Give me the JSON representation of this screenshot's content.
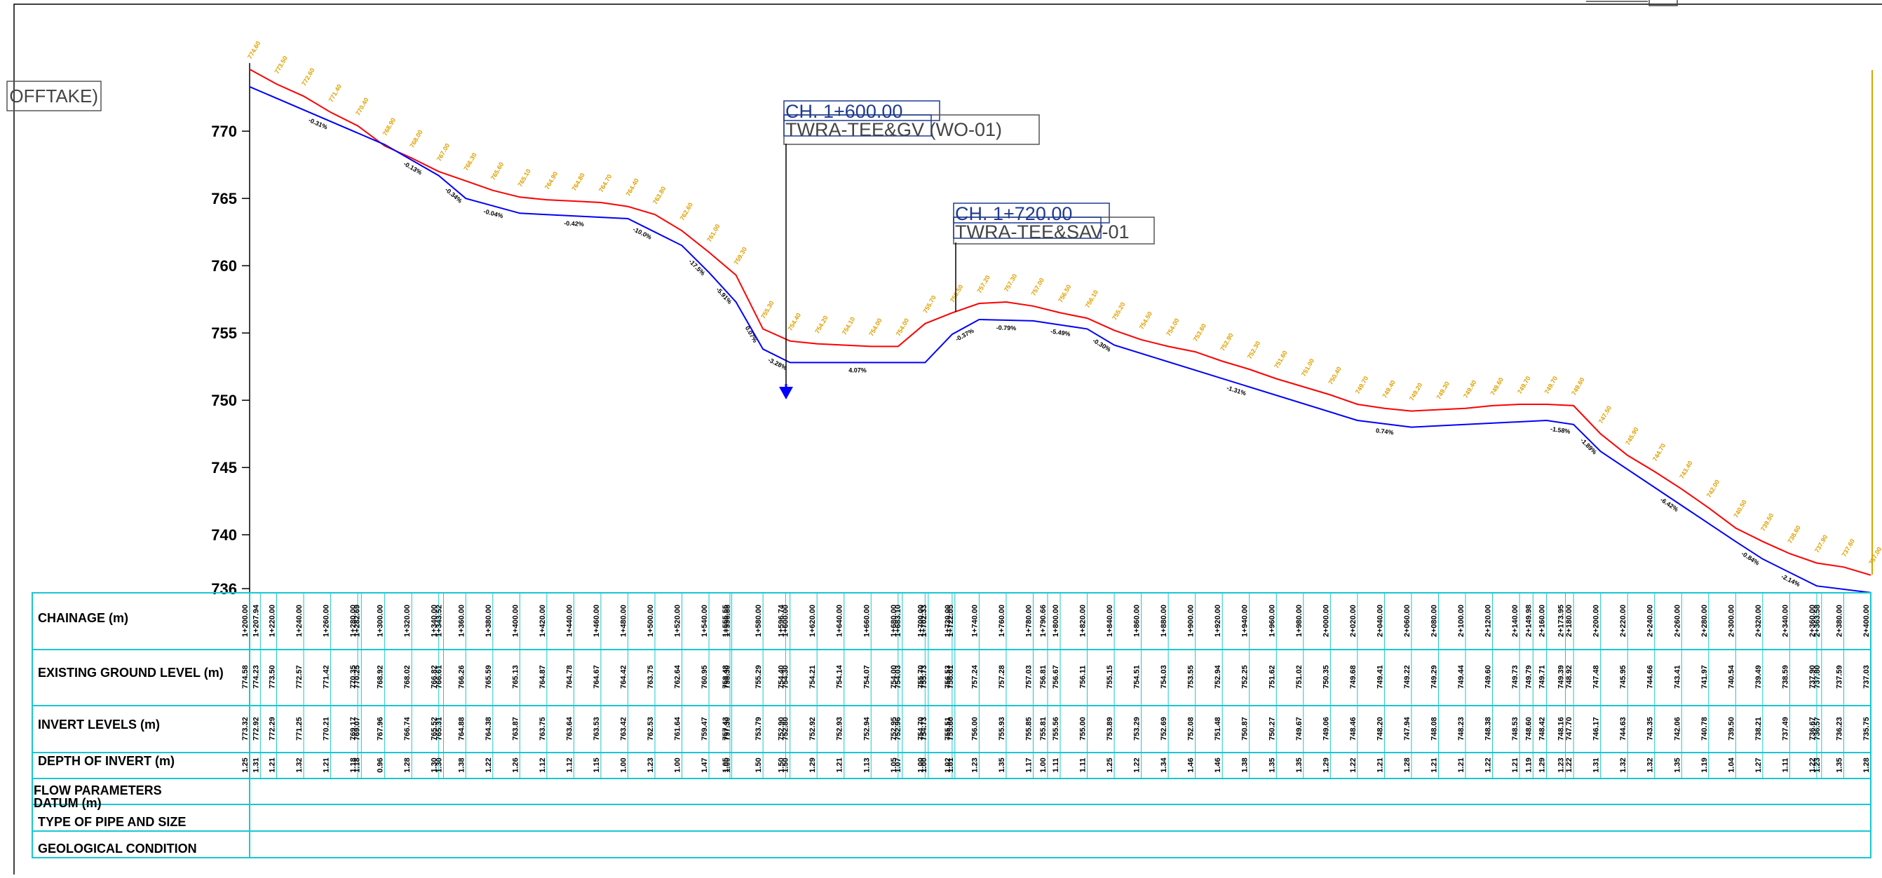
{
  "drawing": {
    "offtake_label": "OFFTAKE)",
    "annotations": [
      {
        "chainage": "CH. 1+600.00",
        "fitting": "TWRA-TEE&GV (WO-01)"
      },
      {
        "chainage": "CH. 1+720.00",
        "fitting": "TWRA-TEE&SAV-01"
      }
    ]
  },
  "chart_data": {
    "type": "line",
    "title": "",
    "ylabel": "",
    "ylim": [
      736,
      775
    ],
    "y_ticks": [
      "770",
      "765",
      "760",
      "755",
      "750",
      "745",
      "740",
      "736"
    ],
    "x_range": [
      1200,
      2400
    ],
    "series": [
      {
        "name": "",
        "color": "#ff0000",
        "points": [
          [
            1200,
            774.6
          ],
          [
            1220,
            773.5
          ],
          [
            1240,
            772.6
          ],
          [
            1260,
            771.4
          ],
          [
            1280,
            770.4
          ],
          [
            1300,
            768.9
          ],
          [
            1320,
            768.0
          ],
          [
            1340,
            767.0
          ],
          [
            1360,
            766.3
          ],
          [
            1380,
            765.6
          ],
          [
            1400,
            765.1
          ],
          [
            1420,
            764.9
          ],
          [
            1440,
            764.8
          ],
          [
            1460,
            764.7
          ],
          [
            1480,
            764.4
          ],
          [
            1500,
            763.8
          ],
          [
            1520,
            762.6
          ],
          [
            1540,
            761.0
          ],
          [
            1560,
            759.3
          ],
          [
            1580,
            755.3
          ],
          [
            1600,
            754.4
          ],
          [
            1620,
            754.2
          ],
          [
            1640,
            754.1
          ],
          [
            1660,
            754.0
          ],
          [
            1680,
            754.0
          ],
          [
            1700,
            755.7
          ],
          [
            1720,
            756.5
          ],
          [
            1740,
            757.2
          ],
          [
            1760,
            757.3
          ],
          [
            1780,
            757.0
          ],
          [
            1800,
            756.5
          ],
          [
            1820,
            756.1
          ],
          [
            1840,
            755.2
          ],
          [
            1860,
            754.5
          ],
          [
            1880,
            754.0
          ],
          [
            1900,
            753.6
          ],
          [
            1920,
            752.9
          ],
          [
            1940,
            752.3
          ],
          [
            1960,
            751.6
          ],
          [
            1980,
            751.0
          ],
          [
            2000,
            750.4
          ],
          [
            2020,
            749.7
          ],
          [
            2040,
            749.4
          ],
          [
            2060,
            749.2
          ],
          [
            2080,
            749.3
          ],
          [
            2100,
            749.4
          ],
          [
            2120,
            749.6
          ],
          [
            2140,
            749.7
          ],
          [
            2160,
            749.7
          ],
          [
            2180,
            749.6
          ],
          [
            2200,
            747.5
          ],
          [
            2220,
            745.9
          ],
          [
            2240,
            744.7
          ],
          [
            2260,
            743.4
          ],
          [
            2280,
            742.0
          ],
          [
            2300,
            740.5
          ],
          [
            2320,
            739.5
          ],
          [
            2340,
            738.6
          ],
          [
            2360,
            737.9
          ],
          [
            2380,
            737.6
          ],
          [
            2400,
            737.0
          ]
        ]
      },
      {
        "name": "",
        "color": "#0000ff",
        "points": [
          [
            1200,
            773.3
          ],
          [
            1300,
            769.0
          ],
          [
            1340,
            766.7
          ],
          [
            1360,
            765.0
          ],
          [
            1400,
            763.9
          ],
          [
            1480,
            763.5
          ],
          [
            1500,
            762.5
          ],
          [
            1520,
            761.5
          ],
          [
            1540,
            759.5
          ],
          [
            1560,
            757.3
          ],
          [
            1580,
            753.8
          ],
          [
            1600,
            752.8
          ],
          [
            1700,
            752.8
          ],
          [
            1720,
            754.9
          ],
          [
            1740,
            756.0
          ],
          [
            1780,
            755.9
          ],
          [
            1820,
            755.3
          ],
          [
            1840,
            754.1
          ],
          [
            2020,
            748.5
          ],
          [
            2060,
            748.0
          ],
          [
            2160,
            748.5
          ],
          [
            2180,
            748.2
          ],
          [
            2200,
            746.2
          ],
          [
            2300,
            739.5
          ],
          [
            2320,
            738.2
          ],
          [
            2360,
            736.2
          ],
          [
            2400,
            735.7
          ]
        ]
      }
    ],
    "gradients": [
      "-0.31%",
      "-0.13%",
      "-0.34%",
      "-0.04%",
      "-0.42%",
      "-10.0%",
      "-17.5%",
      "-5.91%",
      "0.07%",
      "-3.28%",
      "4.07%",
      "-0.37%",
      "-0.79%",
      "-5.49%",
      "-0.30%",
      "-1.31%",
      "0.74%",
      "-1.58%",
      "-1.89%",
      "-6.42%",
      "-0.84%",
      "-2.14%"
    ],
    "profile_table": {
      "row_labels": [
        "CHAINAGE (m)",
        "EXISTING GROUND LEVEL (m)",
        "INVERT LEVELS (m)",
        "DEPTH OF INVERT (m)",
        "FLOW PARAMETERS",
        "DATUM (m)",
        "TYPE OF PIPE AND SIZE",
        "GEOLOGICAL CONDITION"
      ],
      "columns": [
        {
          "ch": "1+200.00",
          "gl": "774.58",
          "il": "773.32",
          "d": "1.25"
        },
        {
          "ch": "1+207.94",
          "gl": "774.23",
          "il": "772.92",
          "d": "1.31"
        },
        {
          "ch": "1+220.00",
          "gl": "773.50",
          "il": "772.29",
          "d": "1.21"
        },
        {
          "ch": "1+240.00",
          "gl": "772.57",
          "il": "771.25",
          "d": "1.32"
        },
        {
          "ch": "1+260.00",
          "gl": "771.42",
          "il": "770.21",
          "d": "1.21"
        },
        {
          "ch": "1+280.00",
          "gl": "770.35",
          "il": "769.17",
          "d": "1.18"
        },
        {
          "ch": "1+282.69",
          "gl": "770.25",
          "il": "769.07",
          "d": "1.18"
        },
        {
          "ch": "1+300.00",
          "gl": "768.92",
          "il": "767.96",
          "d": "0.96"
        },
        {
          "ch": "1+320.00",
          "gl": "768.02",
          "il": "766.74",
          "d": "1.28"
        },
        {
          "ch": "1+340.00",
          "gl": "766.82",
          "il": "765.52",
          "d": "1.30"
        },
        {
          "ch": "1+343.52",
          "gl": "766.61",
          "il": "765.31",
          "d": "1.30"
        },
        {
          "ch": "1+360.00",
          "gl": "766.26",
          "il": "764.88",
          "d": "1.38"
        },
        {
          "ch": "1+380.00",
          "gl": "765.59",
          "il": "764.38",
          "d": "1.22"
        },
        {
          "ch": "1+400.00",
          "gl": "765.13",
          "il": "763.87",
          "d": "1.26"
        },
        {
          "ch": "1+420.00",
          "gl": "764.87",
          "il": "763.75",
          "d": "1.12"
        },
        {
          "ch": "1+440.00",
          "gl": "764.78",
          "il": "763.64",
          "d": "1.12"
        },
        {
          "ch": "1+460.00",
          "gl": "764.67",
          "il": "763.53",
          "d": "1.15"
        },
        {
          "ch": "1+480.00",
          "gl": "764.42",
          "il": "763.42",
          "d": "1.00"
        },
        {
          "ch": "1+500.00",
          "gl": "763.75",
          "il": "762.53",
          "d": "1.23"
        },
        {
          "ch": "1+520.00",
          "gl": "762.64",
          "il": "761.64",
          "d": "1.00"
        },
        {
          "ch": "1+540.00",
          "gl": "760.95",
          "il": "759.47",
          "d": "1.47"
        },
        {
          "ch": "1+555.55",
          "gl": "758.48",
          "il": "757.43",
          "d": "1.05"
        },
        {
          "ch": "1+556.88",
          "gl": "758.30",
          "il": "757.30",
          "d": "1.00"
        },
        {
          "ch": "1+580.00",
          "gl": "755.29",
          "il": "753.79",
          "d": "1.50"
        },
        {
          "ch": "1+596.74",
          "gl": "754.40",
          "il": "752.90",
          "d": "1.50"
        },
        {
          "ch": "1+600.00",
          "gl": "754.30",
          "il": "752.80",
          "d": "1.50"
        },
        {
          "ch": "1+620.00",
          "gl": "754.21",
          "il": "752.92",
          "d": "1.29"
        },
        {
          "ch": "1+640.00",
          "gl": "754.14",
          "il": "752.93",
          "d": "1.21"
        },
        {
          "ch": "1+660.00",
          "gl": "754.07",
          "il": "752.94",
          "d": "1.13"
        },
        {
          "ch": "1+680.00",
          "gl": "754.00",
          "il": "752.95",
          "d": "1.05"
        },
        {
          "ch": "1+683.10",
          "gl": "754.03",
          "il": "752.96",
          "d": "1.07"
        },
        {
          "ch": "1+700.00",
          "gl": "755.70",
          "il": "754.70",
          "d": "1.00"
        },
        {
          "ch": "1+702.33",
          "gl": "755.73",
          "il": "754.73",
          "d": "1.00"
        },
        {
          "ch": "1+720.00",
          "gl": "756.53",
          "il": "755.51",
          "d": "1.02"
        },
        {
          "ch": "1+722.05",
          "gl": "756.61",
          "il": "755.60",
          "d": "1.01"
        },
        {
          "ch": "1+740.00",
          "gl": "757.24",
          "il": "756.00",
          "d": "1.23"
        },
        {
          "ch": "1+760.00",
          "gl": "757.28",
          "il": "755.93",
          "d": "1.35"
        },
        {
          "ch": "1+780.00",
          "gl": "757.03",
          "il": "755.85",
          "d": "1.17"
        },
        {
          "ch": "1+790.66",
          "gl": "756.81",
          "il": "755.81",
          "d": "1.00"
        },
        {
          "ch": "1+800.00",
          "gl": "756.67",
          "il": "755.56",
          "d": "1.11"
        },
        {
          "ch": "1+820.00",
          "gl": "756.11",
          "il": "755.00",
          "d": "1.11"
        },
        {
          "ch": "1+840.00",
          "gl": "755.15",
          "il": "753.89",
          "d": "1.25"
        },
        {
          "ch": "1+860.00",
          "gl": "754.51",
          "il": "753.29",
          "d": "1.22"
        },
        {
          "ch": "1+880.00",
          "gl": "754.03",
          "il": "752.69",
          "d": "1.34"
        },
        {
          "ch": "1+900.00",
          "gl": "753.55",
          "il": "752.08",
          "d": "1.46"
        },
        {
          "ch": "1+920.00",
          "gl": "752.94",
          "il": "751.48",
          "d": "1.46"
        },
        {
          "ch": "1+940.00",
          "gl": "752.25",
          "il": "750.87",
          "d": "1.38"
        },
        {
          "ch": "1+960.00",
          "gl": "751.62",
          "il": "750.27",
          "d": "1.35"
        },
        {
          "ch": "1+980.00",
          "gl": "751.02",
          "il": "749.67",
          "d": "1.35"
        },
        {
          "ch": "2+000.00",
          "gl": "750.35",
          "il": "749.06",
          "d": "1.29"
        },
        {
          "ch": "2+020.00",
          "gl": "749.68",
          "il": "748.46",
          "d": "1.22"
        },
        {
          "ch": "2+040.00",
          "gl": "749.41",
          "il": "748.20",
          "d": "1.21"
        },
        {
          "ch": "2+060.00",
          "gl": "749.22",
          "il": "747.94",
          "d": "1.28"
        },
        {
          "ch": "2+080.00",
          "gl": "749.29",
          "il": "748.08",
          "d": "1.21"
        },
        {
          "ch": "2+100.00",
          "gl": "749.44",
          "il": "748.23",
          "d": "1.21"
        },
        {
          "ch": "2+120.00",
          "gl": "749.60",
          "il": "748.38",
          "d": "1.22"
        },
        {
          "ch": "2+140.00",
          "gl": "749.73",
          "il": "748.53",
          "d": "1.21"
        },
        {
          "ch": "2+149.98",
          "gl": "749.79",
          "il": "748.60",
          "d": "1.19"
        },
        {
          "ch": "2+160.00",
          "gl": "749.71",
          "il": "748.42",
          "d": "1.29"
        },
        {
          "ch": "2+173.95",
          "gl": "749.39",
          "il": "748.16",
          "d": "1.23"
        },
        {
          "ch": "2+180.00",
          "gl": "748.92",
          "il": "747.70",
          "d": "1.22"
        },
        {
          "ch": "2+200.00",
          "gl": "747.48",
          "il": "746.17",
          "d": "1.31"
        },
        {
          "ch": "2+220.00",
          "gl": "745.95",
          "il": "744.63",
          "d": "1.32"
        },
        {
          "ch": "2+240.00",
          "gl": "744.66",
          "il": "743.35",
          "d": "1.32"
        },
        {
          "ch": "2+260.00",
          "gl": "743.41",
          "il": "742.06",
          "d": "1.35"
        },
        {
          "ch": "2+280.00",
          "gl": "741.97",
          "il": "740.78",
          "d": "1.19"
        },
        {
          "ch": "2+300.00",
          "gl": "740.54",
          "il": "739.50",
          "d": "1.04"
        },
        {
          "ch": "2+320.00",
          "gl": "739.49",
          "il": "738.21",
          "d": "1.27"
        },
        {
          "ch": "2+340.00",
          "gl": "738.59",
          "il": "737.49",
          "d": "1.11"
        },
        {
          "ch": "2+360.00",
          "gl": "737.90",
          "il": "736.67",
          "d": "1.22"
        },
        {
          "ch": "2+363.58",
          "gl": "737.80",
          "il": "736.57",
          "d": "1.23"
        },
        {
          "ch": "2+380.00",
          "gl": "737.59",
          "il": "736.23",
          "d": "1.35"
        },
        {
          "ch": "2+400.00",
          "gl": "737.03",
          "il": "735.75",
          "d": "1.28"
        }
      ]
    }
  }
}
